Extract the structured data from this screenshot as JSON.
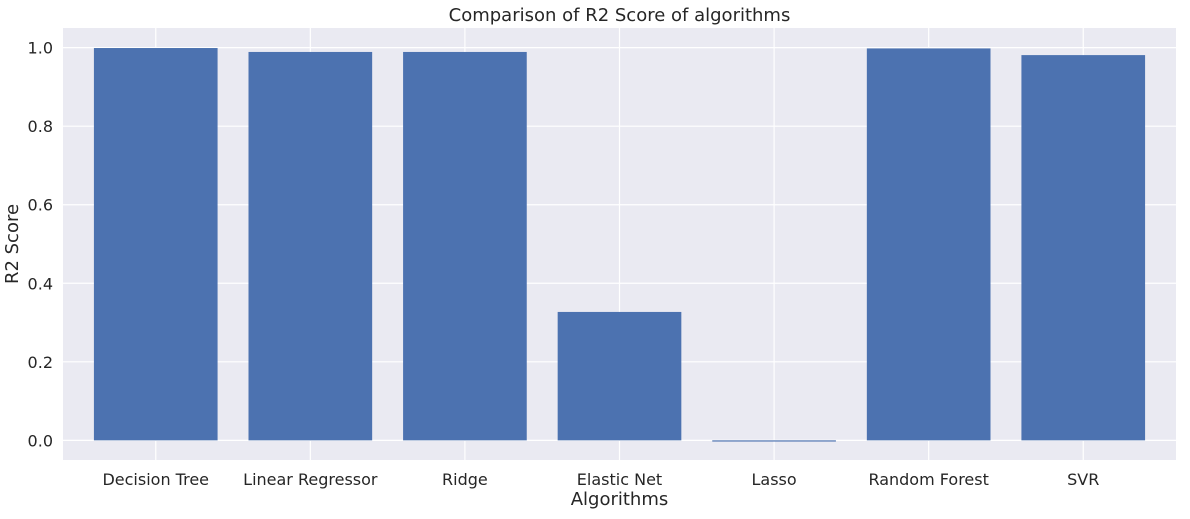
{
  "chart_data": {
    "type": "bar",
    "title": "Comparison of R2 Score of algorithms",
    "xlabel": "Algorithms",
    "ylabel": "R2 Score",
    "categories": [
      "Decision Tree",
      "Linear Regressor",
      "Ridge",
      "Elastic Net",
      "Lasso",
      "Random Forest",
      "SVR"
    ],
    "values": [
      0.999,
      0.989,
      0.989,
      0.327,
      -0.003,
      0.998,
      0.981
    ],
    "ylim": [
      -0.05,
      1.05
    ],
    "yticks": [
      "0.0",
      "0.2",
      "0.4",
      "0.6",
      "0.8",
      "1.0"
    ],
    "grid": true,
    "colors": {
      "bar": "#4c72b0",
      "plot_background": "#eaeaf2",
      "grid": "#ffffff"
    }
  }
}
